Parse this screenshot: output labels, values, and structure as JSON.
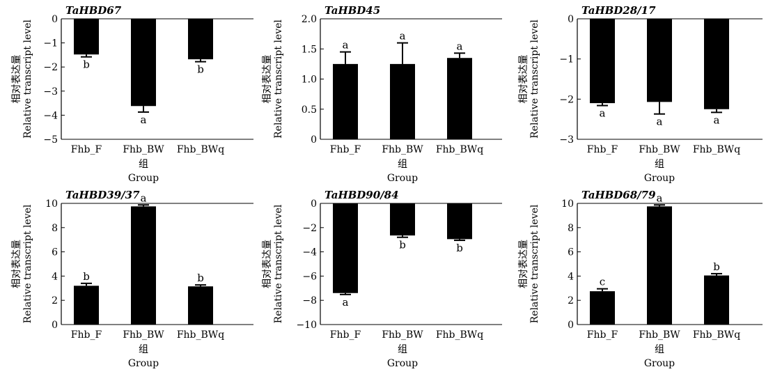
{
  "chart_data": [
    {
      "type": "bar",
      "title": "TaHBD67",
      "ylabel_cn": "相对表达量",
      "ylabel_en": "Relative transcript level",
      "xlabel_cn": "组",
      "xlabel_en": "Group",
      "categories": [
        "Fhb_F",
        "Fhb_BW",
        "Fhb_BWq"
      ],
      "values": [
        -1.48,
        -3.62,
        -1.68
      ],
      "errors": [
        0.1,
        0.25,
        0.1
      ],
      "labels": [
        "b",
        "a",
        "b"
      ],
      "ylim": [
        -5,
        0
      ],
      "yticks": [
        0,
        -1,
        -2,
        -3,
        -4,
        -5
      ],
      "ytick_labels": [
        "0",
        "−1",
        "−2",
        "−3",
        "−4",
        "−5"
      ]
    },
    {
      "type": "bar",
      "title": "TaHBD45",
      "ylabel_cn": "相对表达量",
      "ylabel_en": "Relative transcript level",
      "xlabel_cn": "组",
      "xlabel_en": "Group",
      "categories": [
        "Fhb_F",
        "Fhb_BW",
        "Fhb_BWq"
      ],
      "values": [
        1.25,
        1.25,
        1.35
      ],
      "errors": [
        0.2,
        0.35,
        0.08
      ],
      "labels": [
        "a",
        "a",
        "a"
      ],
      "ylim": [
        0,
        2
      ],
      "yticks": [
        0,
        0.5,
        1.0,
        1.5,
        2.0
      ],
      "ytick_labels": [
        "0",
        "0.5",
        "1.0",
        "1.5",
        "2.0"
      ]
    },
    {
      "type": "bar",
      "title": "TaHBD28/17",
      "ylabel_cn": "相对表达量",
      "ylabel_en": "Relative transcript level",
      "xlabel_cn": "组",
      "xlabel_en": "Group",
      "categories": [
        "Fhb_F",
        "Fhb_BW",
        "Fhb_BWq"
      ],
      "values": [
        -2.1,
        -2.07,
        -2.25
      ],
      "errors": [
        0.06,
        0.3,
        0.08
      ],
      "labels": [
        "a",
        "a",
        "a"
      ],
      "ylim": [
        -3,
        0
      ],
      "yticks": [
        0,
        -1,
        -2,
        -3
      ],
      "ytick_labels": [
        "0",
        "−1",
        "−2",
        "−3"
      ]
    },
    {
      "type": "bar",
      "title": "TaHBD39/37",
      "ylabel_cn": "相对表达量",
      "ylabel_en": "Relative transcript level",
      "xlabel_cn": "组",
      "xlabel_en": "Group",
      "categories": [
        "Fhb_F",
        "Fhb_BW",
        "Fhb_BWq"
      ],
      "values": [
        3.2,
        9.75,
        3.15
      ],
      "errors": [
        0.2,
        0.12,
        0.12
      ],
      "labels": [
        "b",
        "a",
        "b"
      ],
      "ylim": [
        0,
        10
      ],
      "yticks": [
        0,
        2,
        4,
        6,
        8,
        10
      ],
      "ytick_labels": [
        "0",
        "2",
        "4",
        "6",
        "8",
        "10"
      ]
    },
    {
      "type": "bar",
      "title": "TaHBD90/84",
      "ylabel_cn": "相对表达量",
      "ylabel_en": "Relative transcript level",
      "xlabel_cn": "组",
      "xlabel_en": "Group",
      "categories": [
        "Fhb_F",
        "Fhb_BW",
        "Fhb_BWq"
      ],
      "values": [
        -7.4,
        -2.65,
        -2.95
      ],
      "errors": [
        0.12,
        0.15,
        0.1
      ],
      "labels": [
        "a",
        "b",
        "b"
      ],
      "ylim": [
        -10,
        0
      ],
      "yticks": [
        0,
        -2,
        -4,
        -6,
        -8,
        -10
      ],
      "ytick_labels": [
        "0",
        "−2",
        "−4",
        "−6",
        "−8",
        "−10"
      ]
    },
    {
      "type": "bar",
      "title": "TaHBD68/79",
      "ylabel_cn": "相对表达量",
      "ylabel_en": "Relative transcript level",
      "xlabel_cn": "组",
      "xlabel_en": "Group",
      "categories": [
        "Fhb_F",
        "Fhb_BW",
        "Fhb_BWq"
      ],
      "values": [
        2.75,
        9.75,
        4.05
      ],
      "errors": [
        0.2,
        0.12,
        0.15
      ],
      "labels": [
        "c",
        "a",
        "b"
      ],
      "ylim": [
        0,
        10
      ],
      "yticks": [
        0,
        2,
        4,
        6,
        8,
        10
      ],
      "ytick_labels": [
        "0",
        "2",
        "4",
        "6",
        "8",
        "10"
      ]
    }
  ]
}
